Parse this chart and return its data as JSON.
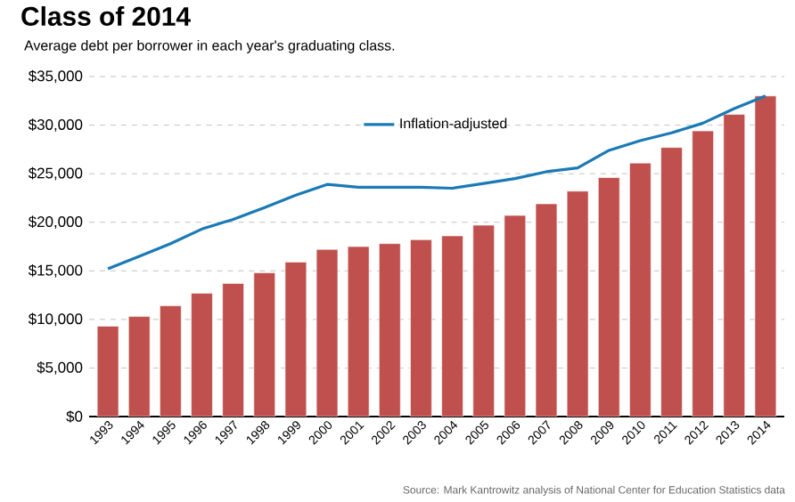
{
  "chart_data": {
    "type": "bar",
    "title": "Class of 2014",
    "subtitle": "Average debt per borrower in each year's graduating class.",
    "categories": [
      "1993",
      "1994",
      "1995",
      "1996",
      "1997",
      "1998",
      "1999",
      "2000",
      "2001",
      "2002",
      "2003",
      "2004",
      "2005",
      "2006",
      "2007",
      "2008",
      "2009",
      "2010",
      "2011",
      "2012",
      "2013",
      "2014"
    ],
    "series": [
      {
        "color": "#c0504d",
        "values": [
          9300,
          10300,
          11400,
          12700,
          13700,
          14800,
          15900,
          17200,
          17500,
          17800,
          18200,
          18600,
          19700,
          20700,
          21900,
          23200,
          24600,
          26100,
          27700,
          29400,
          31100,
          33000
        ]
      },
      {
        "type": "line",
        "name": "Inflation-adjusted",
        "color": "#1a7ab5",
        "values": [
          15200,
          16500,
          17800,
          19300,
          20300,
          21500,
          22800,
          23900,
          23600,
          23600,
          23600,
          23500,
          24000,
          24500,
          25200,
          25600,
          27400,
          28400,
          29200,
          30200,
          31700,
          33000
        ]
      }
    ],
    "ylim": [
      0,
      35000
    ],
    "yticks": [
      {
        "value": 0,
        "label": "$0"
      },
      {
        "value": 5000,
        "label": "$5,000"
      },
      {
        "value": 10000,
        "label": "$10,000"
      },
      {
        "value": 15000,
        "label": "$15,000"
      },
      {
        "value": 20000,
        "label": "$20,000"
      },
      {
        "value": 25000,
        "label": "$25,000"
      },
      {
        "value": 30000,
        "label": "$30,000"
      },
      {
        "value": 35000,
        "label": "$35,000"
      }
    ],
    "grid": "y",
    "legend": "top",
    "line_style": "solid",
    "marker": "none",
    "annotations": [
      "Source: Mark Kantrowitz analysis of National Center for Education Statistics data"
    ]
  }
}
